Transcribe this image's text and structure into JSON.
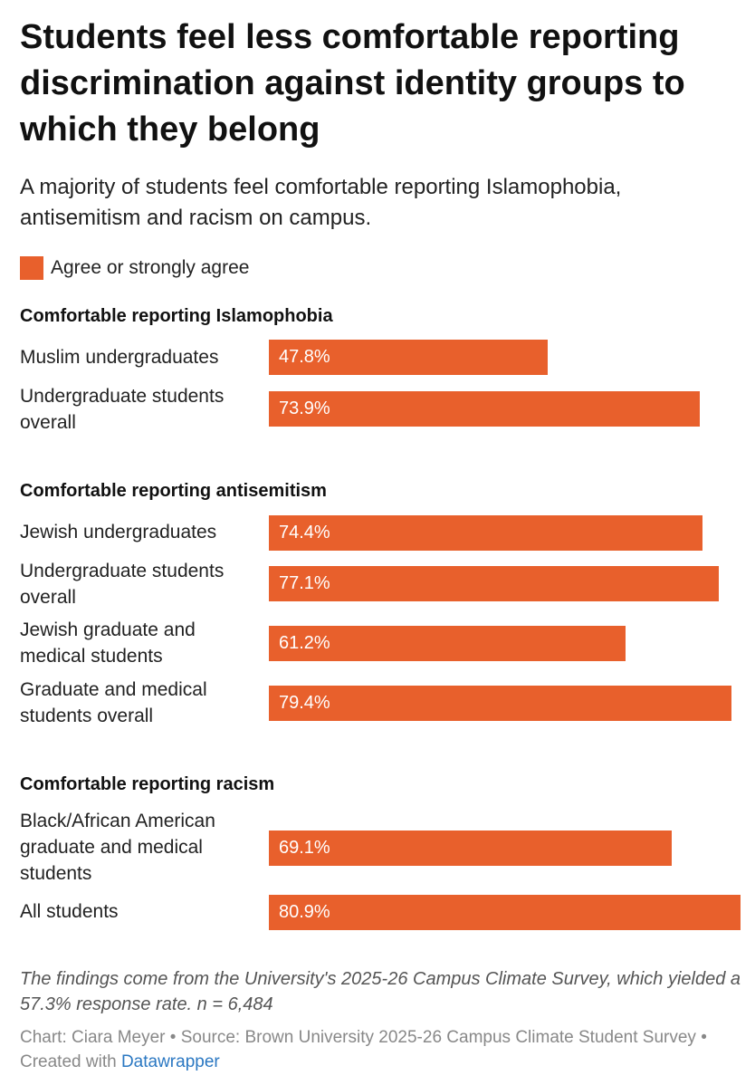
{
  "title": "Students feel less comfortable reporting discrimination against identity groups to which they belong",
  "subtitle": "A majority of students feel comfortable reporting Islamophobia, antisemitism and racism on campus.",
  "legend": {
    "label": "Agree or strongly agree",
    "color": "#e8602c"
  },
  "chart_data": {
    "type": "bar",
    "orientation": "horizontal",
    "unit": "%",
    "xlim": [
      0,
      80.9
    ],
    "series_name": "Agree or strongly agree",
    "groups": [
      {
        "title": "Comfortable reporting Islamophobia",
        "rows": [
          {
            "label": "Muslim undergraduates",
            "value": 47.8,
            "value_label": "47.8%"
          },
          {
            "label": "Undergraduate students overall",
            "value": 73.9,
            "value_label": "73.9%"
          }
        ]
      },
      {
        "title": "Comfortable reporting antisemitism",
        "rows": [
          {
            "label": "Jewish undergraduates",
            "value": 74.4,
            "value_label": "74.4%"
          },
          {
            "label": "Undergraduate students overall",
            "value": 77.1,
            "value_label": "77.1%"
          },
          {
            "label": "Jewish graduate and medical students",
            "value": 61.2,
            "value_label": "61.2%"
          },
          {
            "label": "Graduate and medical students overall",
            "value": 79.4,
            "value_label": "79.4%"
          }
        ]
      },
      {
        "title": "Comfortable reporting racism",
        "rows": [
          {
            "label": "Black/African American graduate and medical students",
            "value": 69.1,
            "value_label": "69.1%"
          },
          {
            "label": "All students",
            "value": 80.9,
            "value_label": "80.9%"
          }
        ]
      }
    ]
  },
  "note": "The findings come from the University's 2025-26 Campus Climate Survey, which yielded a 57.3% response rate. n = 6,484",
  "credits": {
    "chart_by": "Chart: Ciara Meyer",
    "separator": "•",
    "source": "Source: Brown University 2025-26 Campus Climate Student Survey",
    "created_with": "Created with",
    "link_text": "Datawrapper"
  }
}
